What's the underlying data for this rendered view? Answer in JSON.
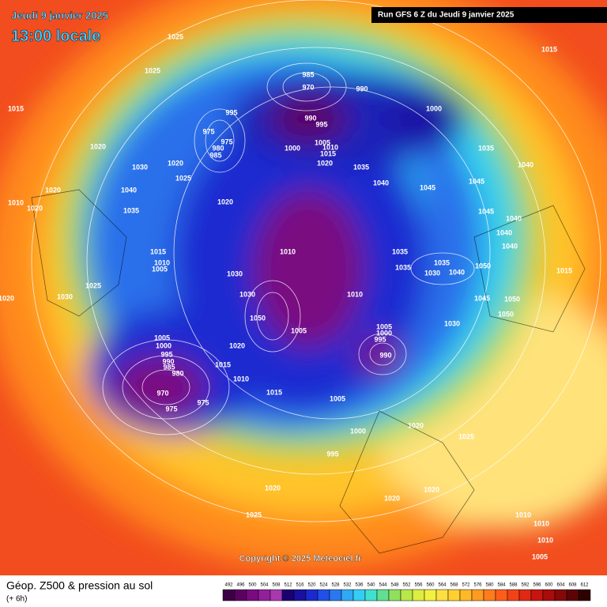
{
  "header": {
    "date": "Jeudi 9 janvier 2025",
    "time": "13:00 locale",
    "run": "Run GFS 6 Z du Jeudi 9 janvier 2025"
  },
  "copyright": "Copyright © 2025 Meteociel.fr",
  "footer": {
    "title": "Géop. Z500 & pression au sol",
    "lead": "(+ 6h)"
  },
  "pressure_labels": [
    "1025",
    "1025",
    "1015",
    "1015",
    "1020",
    "1030",
    "1020",
    "1025",
    "1020",
    "1040",
    "1010",
    "1020",
    "1035",
    "1020",
    "985",
    "970",
    "990",
    "995",
    "975",
    "975",
    "980",
    "985",
    "990",
    "995",
    "1000",
    "1000",
    "1005",
    "1010",
    "1015",
    "1020",
    "1035",
    "1035",
    "1040",
    "1040",
    "1045",
    "1045",
    "1045",
    "1040",
    "1040",
    "1040",
    "1015",
    "1010",
    "1005",
    "1030",
    "1010",
    "1035",
    "1035",
    "1035",
    "1030",
    "1040",
    "1050",
    "1015",
    "1025",
    "1030",
    "1030",
    "1050",
    "1010",
    "1045",
    "1050",
    "1050",
    "1005",
    "1030",
    "1005",
    "1000",
    "995",
    "990",
    "1020",
    "1005",
    "1000",
    "995",
    "990",
    "985",
    "980",
    "970",
    "975",
    "975",
    "1015",
    "1010",
    "1015",
    "1005",
    "1000",
    "1020",
    "1025",
    "995",
    "1020",
    "1020",
    "1020",
    "1025",
    "1010",
    "1010",
    "1010",
    "1005",
    "1020"
  ],
  "colorbar": {
    "values": [
      492,
      496,
      500,
      504,
      508,
      512,
      516,
      520,
      524,
      528,
      532,
      536,
      540,
      544,
      548,
      552,
      556,
      560,
      564,
      568,
      572,
      576,
      580,
      584,
      588,
      592,
      596,
      600,
      604,
      608,
      612
    ],
    "colors": [
      "#3c0044",
      "#5c0062",
      "#7a0a80",
      "#92209a",
      "#a838b0",
      "#1a0070",
      "#1a10a0",
      "#1a2ad0",
      "#2050e8",
      "#2a78f0",
      "#30a8f4",
      "#34cdf4",
      "#40e0d0",
      "#60e090",
      "#90e060",
      "#b8e84a",
      "#dcee40",
      "#f4f040",
      "#fde040",
      "#ffd030",
      "#ffb828",
      "#ff9a20",
      "#ff7c1c",
      "#ff5e1a",
      "#f44218",
      "#e02814",
      "#c81410",
      "#a80c0c",
      "#860808",
      "#5c0404",
      "#300000"
    ]
  }
}
